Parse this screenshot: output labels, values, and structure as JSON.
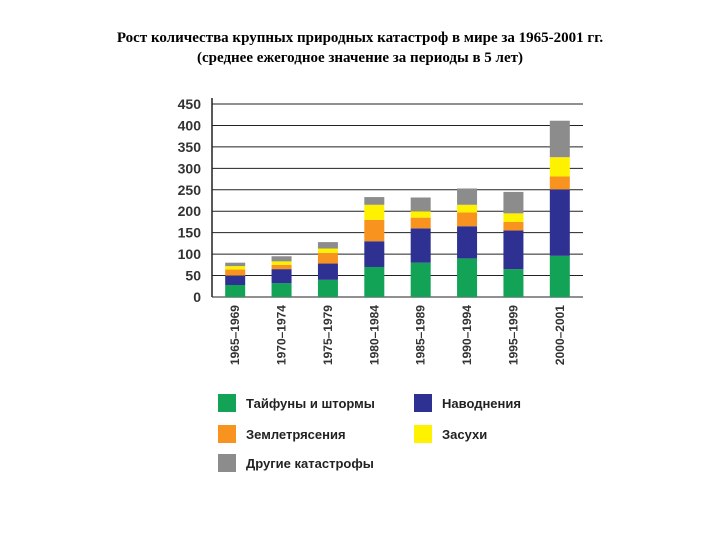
{
  "title": "Рост количества крупных природных катастроф в мире за 1965-2001 гг.",
  "subtitle": "(среднее ежегодное значение за периоды в 5 лет)",
  "chart_data": {
    "type": "bar",
    "stacked": true,
    "categories": [
      "1965–1969",
      "1970–1974",
      "1975–1979",
      "1980–1984",
      "1985–1989",
      "1990–1994",
      "1995–1999",
      "2000–2001"
    ],
    "series": [
      {
        "name": "Тайфуны и штормы",
        "color": "#12a356",
        "values": [
          28,
          32,
          40,
          70,
          80,
          90,
          65,
          96
        ]
      },
      {
        "name": "Наводнения",
        "color": "#2e3192",
        "values": [
          22,
          33,
          38,
          60,
          80,
          75,
          90,
          155
        ]
      },
      {
        "name": "Землетрясения",
        "color": "#f7931e",
        "values": [
          14,
          10,
          25,
          50,
          25,
          32,
          20,
          30
        ]
      },
      {
        "name": "Засухи",
        "color": "#fff200",
        "values": [
          8,
          8,
          10,
          35,
          15,
          18,
          20,
          45
        ]
      },
      {
        "name": "Другие катастрофы",
        "color": "#8c8c8c",
        "values": [
          8,
          12,
          15,
          18,
          32,
          38,
          50,
          85
        ]
      }
    ],
    "yticks": [
      0,
      50,
      100,
      150,
      200,
      250,
      300,
      350,
      400,
      450
    ],
    "ylim": [
      0,
      450
    ],
    "grid": true,
    "legend_placement": "bottom"
  }
}
